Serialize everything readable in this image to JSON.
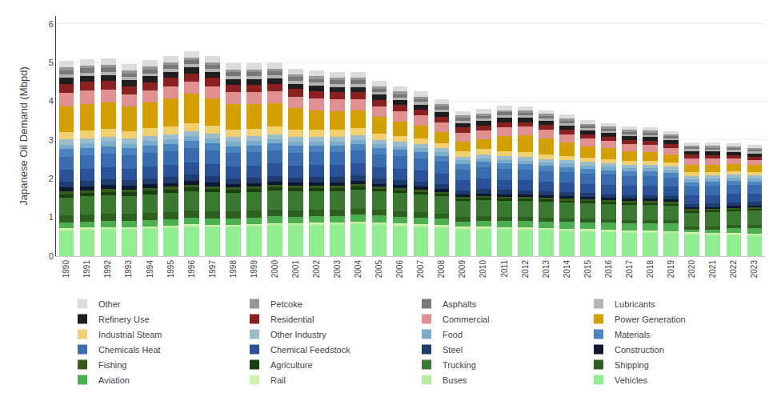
{
  "chart_data": {
    "type": "bar",
    "stacked": true,
    "ylabel": "Japanese Oil Demand (Mbpd)",
    "categories": [
      1990,
      1991,
      1992,
      1993,
      1994,
      1995,
      1996,
      1997,
      1998,
      1999,
      2000,
      2001,
      2002,
      2003,
      2004,
      2005,
      2006,
      2007,
      2008,
      2009,
      2010,
      2011,
      2012,
      2013,
      2014,
      2015,
      2016,
      2017,
      2018,
      2019,
      2020,
      2021,
      2022,
      2023
    ],
    "series": [
      {
        "name": "Vehicles",
        "color": "#90EE90",
        "values": [
          0.65,
          0.67,
          0.68,
          0.68,
          0.7,
          0.72,
          0.75,
          0.74,
          0.74,
          0.76,
          0.78,
          0.78,
          0.79,
          0.8,
          0.82,
          0.8,
          0.78,
          0.76,
          0.74,
          0.7,
          0.7,
          0.69,
          0.68,
          0.67,
          0.65,
          0.64,
          0.62,
          0.61,
          0.6,
          0.59,
          0.56,
          0.55,
          0.54,
          0.53
        ]
      },
      {
        "name": "Buses",
        "color": "#b8eda0",
        "values": [
          0.05,
          0.05,
          0.05,
          0.05,
          0.05,
          0.05,
          0.05,
          0.05,
          0.05,
          0.05,
          0.05,
          0.05,
          0.05,
          0.05,
          0.05,
          0.05,
          0.04,
          0.04,
          0.04,
          0.04,
          0.04,
          0.04,
          0.04,
          0.04,
          0.04,
          0.04,
          0.04,
          0.04,
          0.04,
          0.04,
          0.03,
          0.03,
          0.03,
          0.03
        ]
      },
      {
        "name": "Rail",
        "color": "#d0f5b0",
        "values": [
          0.02,
          0.02,
          0.02,
          0.02,
          0.02,
          0.02,
          0.02,
          0.02,
          0.02,
          0.02,
          0.02,
          0.02,
          0.02,
          0.02,
          0.02,
          0.02,
          0.02,
          0.02,
          0.02,
          0.02,
          0.02,
          0.02,
          0.02,
          0.02,
          0.02,
          0.02,
          0.02,
          0.02,
          0.02,
          0.02,
          0.02,
          0.02,
          0.02,
          0.02
        ]
      },
      {
        "name": "Aviation",
        "color": "#4CAF50",
        "values": [
          0.14,
          0.14,
          0.15,
          0.15,
          0.16,
          0.16,
          0.17,
          0.17,
          0.16,
          0.17,
          0.18,
          0.17,
          0.17,
          0.17,
          0.18,
          0.18,
          0.18,
          0.18,
          0.17,
          0.13,
          0.15,
          0.15,
          0.16,
          0.16,
          0.17,
          0.17,
          0.18,
          0.18,
          0.19,
          0.19,
          0.08,
          0.09,
          0.13,
          0.15
        ]
      },
      {
        "name": "Shipping",
        "color": "#2d6020",
        "values": [
          0.2,
          0.2,
          0.2,
          0.19,
          0.19,
          0.19,
          0.19,
          0.18,
          0.18,
          0.17,
          0.17,
          0.16,
          0.16,
          0.15,
          0.15,
          0.14,
          0.14,
          0.13,
          0.13,
          0.12,
          0.12,
          0.11,
          0.11,
          0.11,
          0.1,
          0.1,
          0.1,
          0.09,
          0.09,
          0.09,
          0.08,
          0.08,
          0.08,
          0.08
        ]
      },
      {
        "name": "Trucking",
        "color": "#3a7a30",
        "values": [
          0.45,
          0.46,
          0.47,
          0.47,
          0.48,
          0.49,
          0.5,
          0.5,
          0.49,
          0.49,
          0.5,
          0.49,
          0.49,
          0.49,
          0.49,
          0.48,
          0.47,
          0.46,
          0.44,
          0.41,
          0.42,
          0.42,
          0.41,
          0.41,
          0.4,
          0.4,
          0.39,
          0.39,
          0.39,
          0.38,
          0.35,
          0.36,
          0.36,
          0.36
        ]
      },
      {
        "name": "Agriculture",
        "color": "#1a4010",
        "values": [
          0.09,
          0.09,
          0.09,
          0.09,
          0.09,
          0.09,
          0.09,
          0.08,
          0.08,
          0.08,
          0.08,
          0.08,
          0.08,
          0.08,
          0.08,
          0.07,
          0.07,
          0.07,
          0.07,
          0.06,
          0.06,
          0.06,
          0.06,
          0.06,
          0.06,
          0.06,
          0.05,
          0.05,
          0.05,
          0.05,
          0.05,
          0.05,
          0.05,
          0.05
        ]
      },
      {
        "name": "Fishing",
        "color": "#355c1a",
        "values": [
          0.07,
          0.07,
          0.07,
          0.07,
          0.07,
          0.07,
          0.07,
          0.06,
          0.06,
          0.06,
          0.06,
          0.06,
          0.06,
          0.06,
          0.06,
          0.05,
          0.05,
          0.05,
          0.05,
          0.04,
          0.04,
          0.04,
          0.04,
          0.04,
          0.04,
          0.04,
          0.04,
          0.04,
          0.04,
          0.04,
          0.04,
          0.04,
          0.04,
          0.04
        ]
      },
      {
        "name": "Construction",
        "color": "#0f1830",
        "values": [
          0.1,
          0.1,
          0.1,
          0.1,
          0.1,
          0.1,
          0.1,
          0.1,
          0.09,
          0.09,
          0.09,
          0.09,
          0.09,
          0.09,
          0.09,
          0.08,
          0.08,
          0.08,
          0.07,
          0.07,
          0.07,
          0.07,
          0.07,
          0.06,
          0.06,
          0.06,
          0.06,
          0.06,
          0.06,
          0.06,
          0.05,
          0.05,
          0.05,
          0.05
        ]
      },
      {
        "name": "Steel",
        "color": "#1f3c6e",
        "values": [
          0.16,
          0.15,
          0.15,
          0.14,
          0.15,
          0.16,
          0.16,
          0.16,
          0.14,
          0.14,
          0.14,
          0.13,
          0.13,
          0.13,
          0.14,
          0.13,
          0.13,
          0.13,
          0.12,
          0.11,
          0.12,
          0.11,
          0.11,
          0.11,
          0.11,
          0.1,
          0.1,
          0.1,
          0.1,
          0.1,
          0.09,
          0.09,
          0.09,
          0.09
        ]
      },
      {
        "name": "Chemical Feedstock",
        "color": "#2a5299",
        "values": [
          0.3,
          0.3,
          0.31,
          0.3,
          0.31,
          0.31,
          0.32,
          0.32,
          0.31,
          0.31,
          0.32,
          0.31,
          0.31,
          0.31,
          0.31,
          0.3,
          0.3,
          0.29,
          0.28,
          0.26,
          0.27,
          0.26,
          0.26,
          0.25,
          0.25,
          0.24,
          0.24,
          0.24,
          0.24,
          0.23,
          0.22,
          0.22,
          0.22,
          0.21
        ]
      },
      {
        "name": "Chemicals Heat",
        "color": "#3a6db0",
        "values": [
          0.34,
          0.35,
          0.35,
          0.34,
          0.35,
          0.35,
          0.36,
          0.35,
          0.34,
          0.34,
          0.34,
          0.33,
          0.33,
          0.33,
          0.33,
          0.32,
          0.32,
          0.31,
          0.3,
          0.28,
          0.29,
          0.28,
          0.28,
          0.27,
          0.27,
          0.26,
          0.26,
          0.25,
          0.25,
          0.24,
          0.23,
          0.23,
          0.23,
          0.22
        ]
      },
      {
        "name": "Materials",
        "color": "#4a85c0",
        "values": [
          0.2,
          0.2,
          0.2,
          0.19,
          0.19,
          0.19,
          0.2,
          0.19,
          0.18,
          0.18,
          0.18,
          0.18,
          0.17,
          0.17,
          0.17,
          0.17,
          0.16,
          0.16,
          0.15,
          0.14,
          0.14,
          0.14,
          0.13,
          0.13,
          0.13,
          0.12,
          0.12,
          0.12,
          0.12,
          0.11,
          0.11,
          0.11,
          0.11,
          0.1
        ]
      },
      {
        "name": "Food",
        "color": "#7aadcc",
        "values": [
          0.11,
          0.11,
          0.11,
          0.11,
          0.11,
          0.11,
          0.11,
          0.11,
          0.11,
          0.11,
          0.11,
          0.11,
          0.11,
          0.11,
          0.11,
          0.1,
          0.1,
          0.1,
          0.1,
          0.09,
          0.09,
          0.09,
          0.09,
          0.09,
          0.09,
          0.09,
          0.09,
          0.08,
          0.08,
          0.08,
          0.08,
          0.08,
          0.08,
          0.08
        ]
      },
      {
        "name": "Other Industry",
        "color": "#9bbccc",
        "values": [
          0.13,
          0.13,
          0.13,
          0.13,
          0.13,
          0.13,
          0.13,
          0.13,
          0.12,
          0.12,
          0.12,
          0.12,
          0.12,
          0.12,
          0.12,
          0.11,
          0.11,
          0.11,
          0.1,
          0.1,
          0.1,
          0.1,
          0.1,
          0.09,
          0.09,
          0.09,
          0.09,
          0.09,
          0.09,
          0.09,
          0.08,
          0.08,
          0.08,
          0.08
        ]
      },
      {
        "name": "Industrial Steam",
        "color": "#f0d070",
        "values": [
          0.2,
          0.21,
          0.21,
          0.2,
          0.21,
          0.21,
          0.22,
          0.21,
          0.2,
          0.2,
          0.2,
          0.19,
          0.19,
          0.19,
          0.18,
          0.17,
          0.16,
          0.15,
          0.14,
          0.13,
          0.13,
          0.12,
          0.12,
          0.11,
          0.11,
          0.11,
          0.1,
          0.1,
          0.1,
          0.1,
          0.09,
          0.09,
          0.09,
          0.09
        ]
      },
      {
        "name": "Power Generation",
        "color": "#d4a000",
        "values": [
          0.65,
          0.68,
          0.68,
          0.63,
          0.65,
          0.72,
          0.75,
          0.7,
          0.65,
          0.63,
          0.6,
          0.55,
          0.5,
          0.48,
          0.46,
          0.42,
          0.36,
          0.33,
          0.28,
          0.25,
          0.25,
          0.4,
          0.44,
          0.42,
          0.35,
          0.3,
          0.28,
          0.25,
          0.23,
          0.21,
          0.2,
          0.19,
          0.18,
          0.17
        ]
      },
      {
        "name": "Commercial",
        "color": "#e09090",
        "values": [
          0.35,
          0.34,
          0.33,
          0.32,
          0.32,
          0.32,
          0.32,
          0.32,
          0.31,
          0.31,
          0.31,
          0.3,
          0.3,
          0.3,
          0.29,
          0.28,
          0.27,
          0.26,
          0.25,
          0.23,
          0.23,
          0.23,
          0.22,
          0.22,
          0.21,
          0.2,
          0.2,
          0.19,
          0.19,
          0.18,
          0.17,
          0.16,
          0.15,
          0.14
        ]
      },
      {
        "name": "Residential",
        "color": "#8b2020",
        "values": [
          0.24,
          0.23,
          0.22,
          0.21,
          0.21,
          0.21,
          0.21,
          0.21,
          0.2,
          0.2,
          0.2,
          0.19,
          0.19,
          0.18,
          0.18,
          0.17,
          0.16,
          0.15,
          0.15,
          0.14,
          0.13,
          0.13,
          0.12,
          0.12,
          0.11,
          0.11,
          0.1,
          0.1,
          0.1,
          0.09,
          0.09,
          0.09,
          0.08,
          0.08
        ]
      },
      {
        "name": "Refinery Use",
        "color": "#1e1e1e",
        "values": [
          0.15,
          0.15,
          0.15,
          0.15,
          0.15,
          0.15,
          0.15,
          0.15,
          0.14,
          0.14,
          0.14,
          0.14,
          0.14,
          0.14,
          0.14,
          0.13,
          0.13,
          0.13,
          0.12,
          0.12,
          0.12,
          0.12,
          0.11,
          0.11,
          0.11,
          0.1,
          0.1,
          0.1,
          0.1,
          0.1,
          0.09,
          0.09,
          0.09,
          0.09
        ]
      },
      {
        "name": "Lubricants",
        "color": "#b4b4b4",
        "values": [
          0.09,
          0.09,
          0.09,
          0.08,
          0.08,
          0.08,
          0.08,
          0.08,
          0.08,
          0.08,
          0.08,
          0.08,
          0.08,
          0.08,
          0.08,
          0.07,
          0.07,
          0.07,
          0.07,
          0.06,
          0.06,
          0.06,
          0.06,
          0.06,
          0.06,
          0.05,
          0.05,
          0.05,
          0.05,
          0.05,
          0.05,
          0.05,
          0.04,
          0.04
        ]
      },
      {
        "name": "Asphalts",
        "color": "#787878",
        "values": [
          0.11,
          0.11,
          0.11,
          0.1,
          0.1,
          0.1,
          0.11,
          0.1,
          0.1,
          0.1,
          0.1,
          0.09,
          0.09,
          0.09,
          0.09,
          0.08,
          0.08,
          0.08,
          0.08,
          0.07,
          0.07,
          0.07,
          0.07,
          0.06,
          0.06,
          0.06,
          0.06,
          0.06,
          0.06,
          0.06,
          0.05,
          0.05,
          0.05,
          0.05
        ]
      },
      {
        "name": "Petcoke",
        "color": "#969696",
        "values": [
          0.07,
          0.07,
          0.07,
          0.07,
          0.07,
          0.07,
          0.07,
          0.07,
          0.07,
          0.07,
          0.07,
          0.07,
          0.07,
          0.07,
          0.07,
          0.07,
          0.07,
          0.06,
          0.06,
          0.06,
          0.06,
          0.06,
          0.06,
          0.06,
          0.06,
          0.05,
          0.05,
          0.05,
          0.05,
          0.05,
          0.05,
          0.05,
          0.05,
          0.05
        ]
      },
      {
        "name": "Other",
        "color": "#dcdcdc",
        "values": [
          0.18,
          0.17,
          0.17,
          0.16,
          0.17,
          0.16,
          0.17,
          0.16,
          0.16,
          0.16,
          0.16,
          0.15,
          0.15,
          0.15,
          0.15,
          0.14,
          0.14,
          0.14,
          0.12,
          0.11,
          0.12,
          0.11,
          0.11,
          0.1,
          0.1,
          0.1,
          0.09,
          0.09,
          0.09,
          0.08,
          0.08,
          0.08,
          0.08,
          0.08
        ]
      }
    ],
    "ylim": [
      0,
      6.2
    ],
    "yticks": [
      0,
      1,
      2,
      3,
      4,
      5,
      6
    ],
    "grid": true,
    "legend": "bottom"
  }
}
